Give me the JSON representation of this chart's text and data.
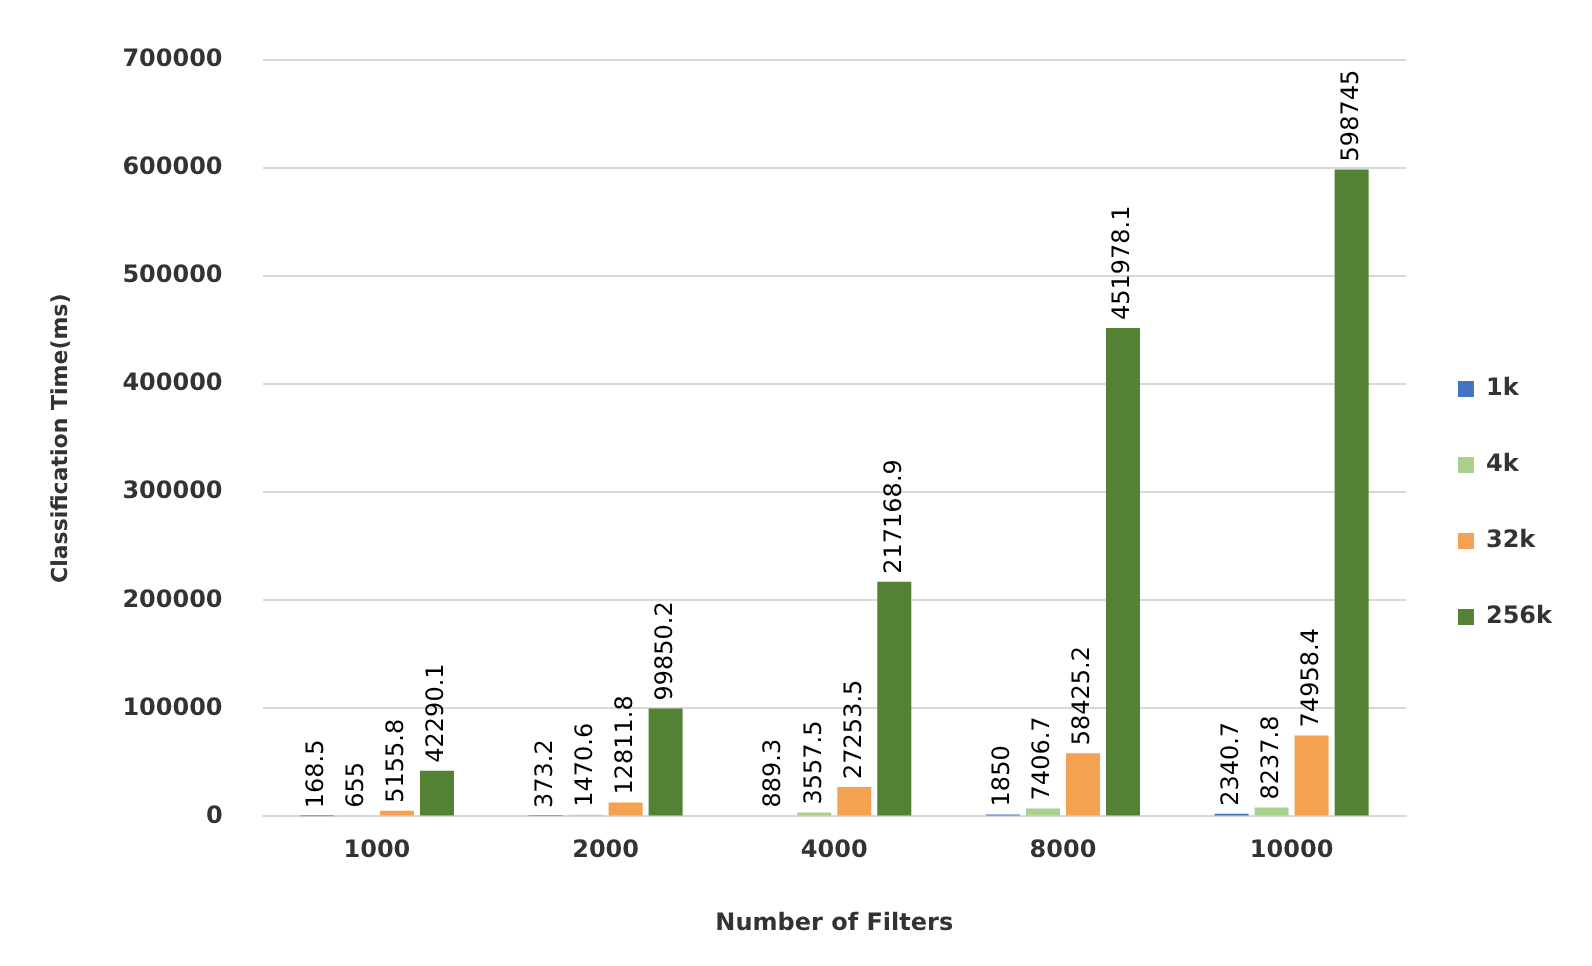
{
  "chart_data": {
    "type": "bar",
    "xlabel": "Number of Filters",
    "ylabel": "Classification Time(ms)",
    "categories": [
      "1000",
      "2000",
      "4000",
      "8000",
      "10000"
    ],
    "series": [
      {
        "name": "1k",
        "color": "#4472c4",
        "values": [
          168.5,
          373.2,
          889.3,
          1850,
          2340.7
        ]
      },
      {
        "name": "4k",
        "color": "#a9d18e",
        "values": [
          655,
          1470.6,
          3557.5,
          7406.7,
          8237.8
        ]
      },
      {
        "name": "32k",
        "color": "#f4a251",
        "values": [
          5155.8,
          12811.8,
          27253.5,
          58425.2,
          74958.4
        ]
      },
      {
        "name": "256k",
        "color": "#548235",
        "values": [
          42290.1,
          99850.2,
          217168.9,
          451978.1,
          598745
        ]
      }
    ],
    "ylim": [
      0,
      700000
    ],
    "yticks": [
      0,
      100000,
      200000,
      300000,
      400000,
      500000,
      600000,
      700000
    ],
    "grid": "y",
    "legend": "right",
    "data_labels": true
  }
}
